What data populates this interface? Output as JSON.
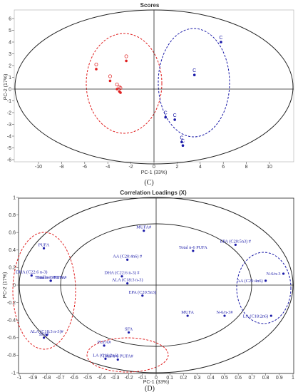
{
  "colors": {
    "red": "#e02020",
    "blue": "#1a1aa8",
    "axis": "#222222"
  },
  "chart_data": [
    {
      "type": "scatter",
      "title": "Scores",
      "xlabel": "PC-1 (33%)",
      "ylabel": "PC-2 (17%)",
      "xlim": [
        -12,
        12
      ],
      "ylim": [
        -6.5,
        6.5
      ],
      "xticks": [
        -10,
        -8,
        -6,
        -4,
        -2,
        0,
        2,
        4,
        6,
        8,
        10
      ],
      "yticks": [
        -6,
        -5,
        -4,
        -3,
        -2,
        -1,
        0,
        1,
        2,
        3,
        4,
        5,
        6
      ],
      "caption": "(C)",
      "series": [
        {
          "color": "#e02020",
          "points": [
            {
              "x": -5.0,
              "y": 1.7,
              "label": "O"
            },
            {
              "x": -3.8,
              "y": 0.7,
              "label": "O"
            },
            {
              "x": -3.2,
              "y": 0.0,
              "label": "O"
            },
            {
              "x": -3.0,
              "y": -0.2,
              "label": "O"
            },
            {
              "x": -2.9,
              "y": -0.3,
              "label": "O"
            },
            {
              "x": -2.4,
              "y": 2.4,
              "label": "O"
            }
          ]
        },
        {
          "color": "#1a1aa8",
          "points": [
            {
              "x": 5.8,
              "y": 4.0,
              "label": "C"
            },
            {
              "x": 3.5,
              "y": 1.2,
              "label": "C"
            },
            {
              "x": 1.0,
              "y": -2.4,
              "label": "C"
            },
            {
              "x": 1.8,
              "y": -2.6,
              "label": "C"
            },
            {
              "x": 2.4,
              "y": -4.5,
              "label": "C"
            },
            {
              "x": 2.5,
              "y": -4.8,
              "label": "C"
            }
          ]
        }
      ]
    },
    {
      "type": "scatter",
      "title": "Correlation Loadings (X)",
      "xlabel": "PC-1 (33%)",
      "ylabel": "PC-2 (17%)",
      "xlim": [
        -1,
        1
      ],
      "ylim": [
        -1,
        1
      ],
      "xticks": [
        -1,
        -0.9,
        -0.8,
        -0.7,
        -0.6,
        -0.5,
        -0.4,
        -0.3,
        -0.2,
        -0.1,
        0,
        0.1,
        0.2,
        0.3,
        0.4,
        0.5,
        0.6,
        0.7,
        0.8,
        0.9,
        1
      ],
      "xtick_labels": [
        "-1",
        "-0.9",
        "-0.8",
        "-0.7",
        "-0.6",
        "-0.5",
        "-0.4",
        "-0.3",
        "-0.2",
        "-0.1",
        "0",
        "0.1",
        "0.2",
        "0.3",
        "0.4",
        "0.5",
        "0.6",
        "0.7",
        "0.8",
        "0.9",
        "1"
      ],
      "yticks": [
        -1,
        -0.8,
        -0.6,
        -0.4,
        -0.2,
        0,
        0.2,
        0.4,
        0.6,
        0.8,
        1
      ],
      "ytick_labels": [
        "-1",
        "-0.8",
        "-0.6",
        "-0.4",
        "-0.2",
        "0",
        "0.2",
        "0.4",
        "0.6",
        "0.8",
        "1"
      ],
      "caption": "(D)",
      "points": [
        {
          "x": -0.82,
          "y": 0.42,
          "label": "PUFA"
        },
        {
          "x": -0.91,
          "y": 0.11,
          "label": "DHA (C22:6 n-3)"
        },
        {
          "x": -0.77,
          "y": 0.05,
          "label": "Total n-3 PUFA"
        },
        {
          "x": -0.77,
          "y": 0.05,
          "label": "Total n-3 PUFA #"
        },
        {
          "x": -0.8,
          "y": -0.57,
          "label": "ALA (C18:3 n-3)#"
        },
        {
          "x": -0.82,
          "y": -0.6,
          "label": "SFA#"
        },
        {
          "x": -0.09,
          "y": 0.62,
          "label": "MUFA#"
        },
        {
          "x": 0.27,
          "y": 0.39,
          "label": "Total n-6 PUFA"
        },
        {
          "x": 0.58,
          "y": 0.46,
          "label": "EPA (C20:5n3) #"
        },
        {
          "x": -0.21,
          "y": 0.29,
          "label": "AA (C20:4n6) #"
        },
        {
          "x": -0.25,
          "y": 0.1,
          "label": "DHA (C22:6 n-3) #"
        },
        {
          "x": -0.21,
          "y": 0.02,
          "label": "ALA (C18:3 n-3)"
        },
        {
          "x": -0.1,
          "y": -0.12,
          "label": "EPA (C20:5n3)"
        },
        {
          "x": 0.93,
          "y": 0.13,
          "label": "N-6/n-3"
        },
        {
          "x": 0.8,
          "y": 0.05,
          "label": "AA (C20:4n6)"
        },
        {
          "x": 0.84,
          "y": -0.35,
          "label": "LA (C18:2n6)"
        },
        {
          "x": 0.23,
          "y": -0.35,
          "label": "MUFA"
        },
        {
          "x": 0.5,
          "y": -0.35,
          "label": "N-6/n-3#"
        },
        {
          "x": -0.2,
          "y": -0.54,
          "label": "SFA"
        },
        {
          "x": -0.38,
          "y": -0.69,
          "label": "PUFA#"
        },
        {
          "x": -0.37,
          "y": -0.84,
          "label": "LA (C18:2n6)"
        },
        {
          "x": -0.28,
          "y": -0.85,
          "label": "Total n-6 PUFA#"
        }
      ]
    }
  ]
}
